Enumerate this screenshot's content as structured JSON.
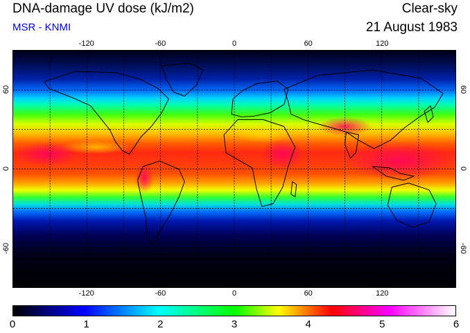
{
  "header": {
    "title": "DNA-damage UV dose (kJ/m2)",
    "subtitle": "MSR - KNMI",
    "right_title": "Clear-sky",
    "date": "21 August 1983"
  },
  "map": {
    "projection": "equirectangular",
    "lon_range": [
      -180,
      180
    ],
    "lat_range": [
      -90,
      90
    ],
    "gridline_style": "dotted",
    "lon_ticks": [
      "-120",
      "-60",
      "0",
      "60",
      "120"
    ],
    "lat_ticks": [
      "60",
      "0",
      "-60"
    ]
  },
  "colorbar": {
    "range": [
      0,
      6
    ],
    "ticks": [
      "0",
      "1",
      "2",
      "3",
      "4",
      "5",
      "6"
    ],
    "colors": [
      "#000000",
      "#0000ff",
      "#00ffff",
      "#00ff00",
      "#ffff00",
      "#ff0000",
      "#ff00ff",
      "#ffffff"
    ],
    "color_positions": [
      0,
      0.16,
      0.33,
      0.5,
      0.6,
      0.72,
      0.85,
      1
    ]
  }
}
